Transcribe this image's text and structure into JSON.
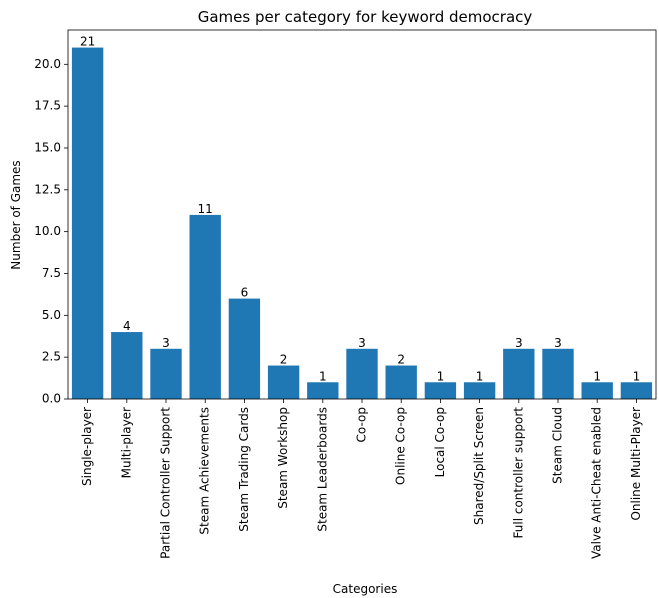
{
  "chart_data": {
    "type": "bar",
    "title": "Games per category for keyword democracy",
    "xlabel": "Categories",
    "ylabel": "Number of Games",
    "categories": [
      "Single-player",
      "Multi-player",
      "Partial Controller Support",
      "Steam Achievements",
      "Steam Trading Cards",
      "Steam Workshop",
      "Steam Leaderboards",
      "Co-op",
      "Online Co-op",
      "Local Co-op",
      "Shared/Split Screen",
      "Full controller support",
      "Steam Cloud",
      "Valve Anti-Cheat enabled",
      "Online Multi-Player"
    ],
    "values": [
      21,
      4,
      3,
      11,
      6,
      2,
      1,
      3,
      2,
      1,
      1,
      3,
      3,
      1,
      1
    ],
    "ylim": [
      0,
      22.05
    ],
    "yticks": [
      "0.0",
      "2.5",
      "5.0",
      "7.5",
      "10.0",
      "12.5",
      "15.0",
      "17.5",
      "20.0"
    ],
    "grid": false,
    "bar_color": "#1f77b4"
  }
}
